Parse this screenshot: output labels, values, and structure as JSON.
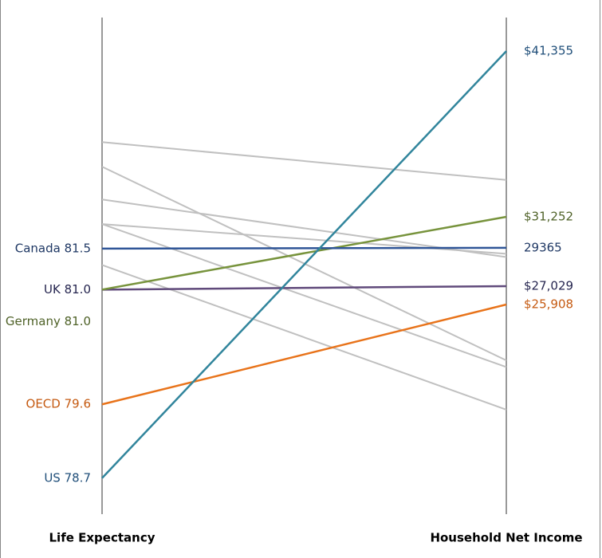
{
  "chart_data": {
    "type": "slope",
    "categories": [
      "Life Expectancy",
      "Household Net Income"
    ],
    "ylim": [
      78.26,
      84.32
    ],
    "y2lim": [
      13130,
      43400
    ],
    "series": [
      {
        "color": "#c0c0c0",
        "values": [
          82.8,
          33500
        ]
      },
      {
        "color": "#c0c0c0",
        "values": [
          82.5,
          22500
        ]
      },
      {
        "color": "#c0c0c0",
        "values": [
          82.1,
          28800
        ]
      },
      {
        "color": "#c0c0c0",
        "values": [
          81.8,
          29000
        ]
      },
      {
        "color": "#c0c0c0",
        "values": [
          81.8,
          22100
        ]
      },
      {
        "color": "#c0c0c0",
        "values": [
          81.3,
          19500
        ]
      },
      {
        "name": "OECD",
        "color": "#e8731a",
        "label_color": "#c55a11",
        "values": [
          79.6,
          25908
        ],
        "value_labels": [
          "OECD 79.6",
          "$25,908"
        ]
      },
      {
        "name": "UK",
        "color": "#604a7b",
        "label_color": "#262650",
        "values": [
          81.0,
          27029
        ],
        "value_labels": [
          "UK 81.0",
          "$27,029"
        ]
      },
      {
        "name": "Germany",
        "color": "#77933c",
        "label_color": "#4f6228",
        "values": [
          81.0,
          31252
        ],
        "value_labels": [
          "Germany 81.0",
          "$31,252"
        ]
      },
      {
        "name": "Canada",
        "color": "#2f5597",
        "label_color": "#1f3864",
        "values": [
          81.5,
          29365
        ],
        "value_labels": [
          "Canada 81.5",
          "29365"
        ]
      },
      {
        "name": "US",
        "color": "#31859c",
        "label_color": "#1f4e79",
        "values": [
          78.7,
          41355
        ],
        "value_labels": [
          "US 78.7",
          "$41,355"
        ]
      }
    ]
  }
}
